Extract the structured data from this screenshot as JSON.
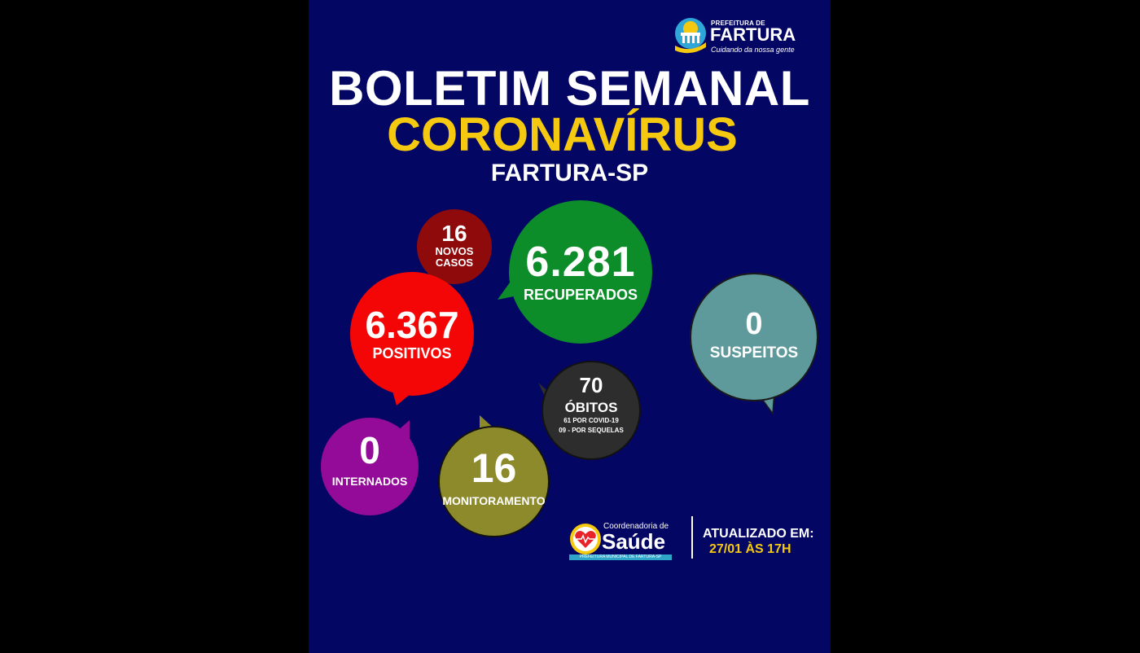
{
  "header": {
    "logo_top": "PREFEITURA DE",
    "logo_name": "FARTURA",
    "logo_tagline": "Cuidando da nossa gente"
  },
  "titles": {
    "line1": "BOLETIM SEMANAL",
    "line2": "CORONAVÍRUS",
    "line3": "FARTURA-SP"
  },
  "stats": {
    "novos_casos": {
      "value": "16",
      "label_line1": "NOVOS",
      "label_line2": "CASOS"
    },
    "recuperados": {
      "value": "6.281",
      "label": "RECUPERADOS"
    },
    "positivos": {
      "value": "6.367",
      "label": "POSITIVOS"
    },
    "suspeitos": {
      "value": "0",
      "label": "SUSPEITOS"
    },
    "obitos": {
      "value": "70",
      "label": "ÓBITOS",
      "detail1": "61 POR COVID-19",
      "detail2": "09 - POR SEQUELAS"
    },
    "internados": {
      "value": "0",
      "label": "INTERNADOS"
    },
    "monitoramento": {
      "value": "16",
      "label": "MONITORAMENTO"
    }
  },
  "footer": {
    "saude_coord": "Coordenadoria de",
    "saude_name": "Saúde",
    "saude_bar": "PREFEITURA MUNICIPAL DE FARTURA-SP",
    "updated_label": "ATUALIZADO EM:",
    "updated_value": "27/01 ÀS 17H"
  },
  "colors": {
    "background": "#040663",
    "accent_yellow": "#f5c90f",
    "novos": "#8f0a0b",
    "recuperados": "#0d8c2a",
    "positivos": "#f50606",
    "suspeitos": "#5e9a9b",
    "obitos": "#2d2d2d",
    "internados": "#930b98",
    "monitoramento": "#8d8a2c"
  }
}
